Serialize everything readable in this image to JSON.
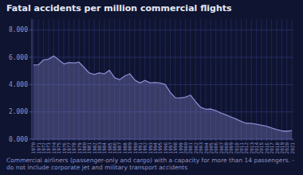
{
  "chart_data": {
    "type": "area",
    "title": "Fatal accidents per million commercial flights",
    "subtitle": "Commercial airliners (passenger-only and cargo) with a capacity for more than 14 passengers. - do not include corporate jet and military transport accidents",
    "x": [
      1970,
      1971,
      1972,
      1973,
      1974,
      1975,
      1976,
      1977,
      1978,
      1979,
      1980,
      1981,
      1982,
      1983,
      1984,
      1985,
      1986,
      1987,
      1988,
      1989,
      1990,
      1991,
      1992,
      1993,
      1994,
      1995,
      1996,
      1997,
      1998,
      1999,
      2000,
      2001,
      2002,
      2003,
      2004,
      2005,
      2006,
      2007,
      2008,
      2009,
      2010,
      2011,
      2012,
      2013,
      2014,
      2015,
      2016,
      2017,
      2018,
      2019,
      2020,
      2021
    ],
    "values": [
      5.441,
      5.453,
      5.81,
      5.865,
      6.099,
      5.819,
      5.517,
      5.616,
      5.582,
      5.642,
      5.258,
      4.855,
      4.748,
      4.855,
      4.79,
      5.049,
      4.514,
      4.361,
      4.633,
      4.793,
      4.331,
      4.117,
      4.306,
      4.127,
      4.159,
      4.116,
      4.019,
      3.428,
      3.037,
      3.025,
      3.082,
      3.233,
      2.742,
      2.333,
      2.187,
      2.214,
      2.097,
      1.921,
      1.779,
      1.621,
      1.479,
      1.302,
      1.165,
      1.158,
      1.099,
      1.021,
      0.957,
      0.821,
      0.701,
      0.613,
      0.583,
      0.628
    ],
    "color": "#8888cc",
    "xlim": [
      1969.7,
      2021.3
    ],
    "xticks": [
      1970,
      1971,
      1972,
      1973,
      1974,
      1975,
      1976,
      1977,
      1978,
      1979,
      1980,
      1981,
      1982,
      1983,
      1984,
      1985,
      1986,
      1987,
      1988,
      1989,
      1990,
      1991,
      1992,
      1993,
      1994,
      1995,
      1996,
      1997,
      1998,
      1999,
      2000,
      2001,
      2002,
      2003,
      2004,
      2005,
      2006,
      2007,
      2008,
      2009,
      2010,
      2011,
      2012,
      2013,
      2014,
      2015,
      2016,
      2017,
      2018,
      2019,
      2020,
      2021
    ],
    "ylim": [
      0,
      8.8
    ],
    "yticks": [
      {
        "value": 0,
        "label": "0.000"
      },
      {
        "value": 2,
        "label": "2.000"
      },
      {
        "value": 4,
        "label": "4.000"
      },
      {
        "value": 6,
        "label": "6.000"
      },
      {
        "value": 8,
        "label": "8.000"
      }
    ],
    "grid": true
  }
}
